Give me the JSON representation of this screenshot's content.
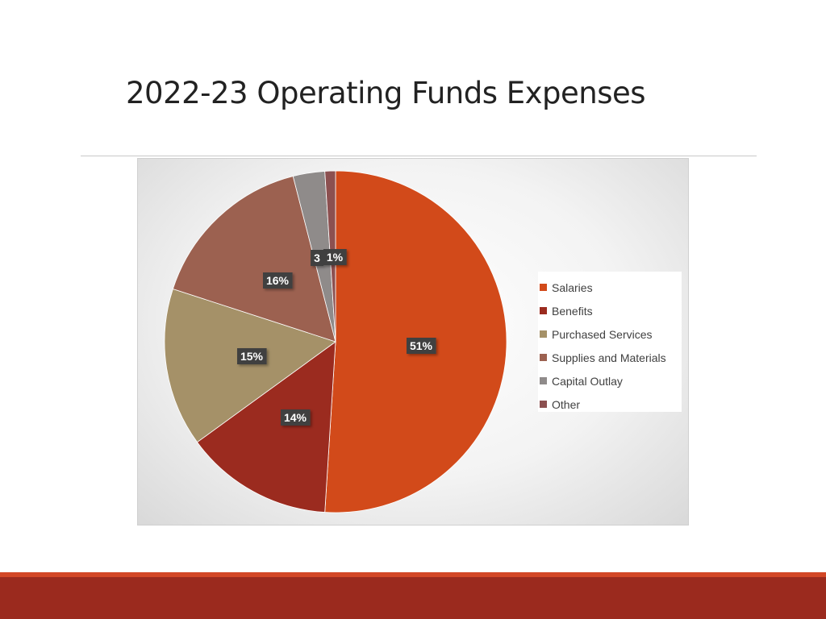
{
  "slide": {
    "title": "2022-23 Operating Funds Expenses"
  },
  "chart_data": {
    "type": "pie",
    "title": "",
    "categories": [
      "Salaries",
      "Benefits",
      "Purchased Services",
      "Supplies and Materials",
      "Capital Outlay",
      "Other"
    ],
    "values": [
      51,
      14,
      15,
      16,
      3,
      1
    ],
    "data_labels": [
      "51%",
      "14%",
      "15%",
      "16%",
      "3",
      "1%"
    ],
    "colors": [
      "#d24a1a",
      "#9b2b1f",
      "#a59168",
      "#9c6150",
      "#8f8b8a",
      "#8c5050"
    ],
    "legend": {
      "position": "right"
    }
  }
}
